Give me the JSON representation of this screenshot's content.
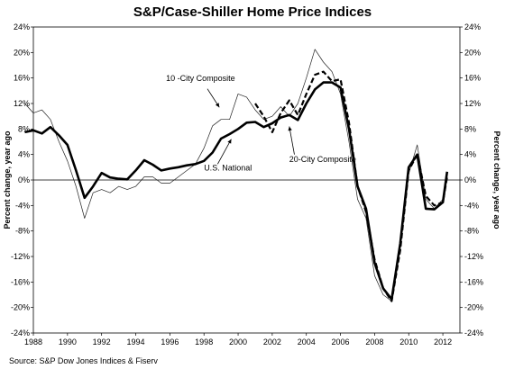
{
  "chart_data": {
    "type": "line",
    "title": "S&P/Case-Shiller Home Price Indices",
    "ylabel_left": "Percent change, year ago",
    "ylabel_right": "Percent change, year ago",
    "source": "Source: S&P Dow Jones Indices & Fiserv",
    "xlim": [
      1988,
      2013
    ],
    "ylim": [
      -24,
      24
    ],
    "x_ticks": [
      "1988",
      "1990",
      "1992",
      "1994",
      "1996",
      "1998",
      "2000",
      "2002",
      "2004",
      "2006",
      "2008",
      "2010",
      "2012"
    ],
    "y_ticks": [
      "24%",
      "20%",
      "16%",
      "12%",
      "8%",
      "4%",
      "0%",
      "-4%",
      "-8%",
      "-12%",
      "-16%",
      "-20%",
      "-24%"
    ],
    "annotations": [
      {
        "text": "10 -City Composite",
        "series": "10-City Composite"
      },
      {
        "text": "U.S. National",
        "series": "U.S. National"
      },
      {
        "text": "20-City Composite",
        "series": "20-City Composite"
      }
    ],
    "series": [
      {
        "name": "U.S. National",
        "style": "solid-thick",
        "x": [
          1987.5,
          1988,
          1988.5,
          1989,
          1989.5,
          1990,
          1990.5,
          1991,
          1991.5,
          1992,
          1992.5,
          1993,
          1993.5,
          1994,
          1994.5,
          1995,
          1995.5,
          1996,
          1996.5,
          1997,
          1997.5,
          1998,
          1998.5,
          1999,
          1999.5,
          2000,
          2000.5,
          2001,
          2001.5,
          2002,
          2002.5,
          2003,
          2003.5,
          2004,
          2004.5,
          2005,
          2005.5,
          2006,
          2006.5,
          2007,
          2007.5,
          2008,
          2008.5,
          2009,
          2009.5,
          2010,
          2010.5,
          2011,
          2011.5,
          2012,
          2012.25
        ],
        "y": [
          7.5,
          7.8,
          7.3,
          8.3,
          7.0,
          5.5,
          1.5,
          -2.8,
          -1.0,
          1.1,
          0.4,
          0.2,
          0.1,
          1.5,
          3.1,
          2.4,
          1.5,
          1.8,
          2.0,
          2.3,
          2.5,
          3.0,
          4.3,
          6.5,
          7.2,
          8.0,
          9.0,
          9.1,
          8.3,
          8.9,
          9.8,
          10.2,
          9.4,
          12.0,
          14.2,
          15.3,
          15.3,
          14.5,
          8.0,
          -1.0,
          -4.5,
          -13.0,
          -17.0,
          -18.7,
          -10.0,
          2.0,
          4.0,
          -4.5,
          -4.6,
          -3.5,
          1.3
        ]
      },
      {
        "name": "10-City Composite",
        "style": "thin",
        "x": [
          1987.5,
          1988,
          1988.5,
          1989,
          1989.5,
          1990,
          1990.5,
          1991,
          1991.5,
          1992,
          1992.5,
          1993,
          1993.5,
          1994,
          1994.5,
          1995,
          1995.5,
          1996,
          1996.5,
          1997,
          1997.5,
          1998,
          1998.5,
          1999,
          1999.5,
          2000,
          2000.5,
          2001,
          2001.5,
          2002,
          2002.5,
          2003,
          2003.5,
          2004,
          2004.5,
          2005,
          2005.5,
          2006,
          2006.5,
          2007,
          2007.5,
          2008,
          2008.5,
          2009,
          2009.5,
          2010,
          2010.5,
          2011,
          2011.5,
          2012,
          2012.25
        ],
        "y": [
          12.0,
          10.5,
          11.0,
          9.5,
          6.0,
          3.0,
          -1.0,
          -6.0,
          -2.0,
          -1.5,
          -2.0,
          -1.0,
          -1.5,
          -1.0,
          0.5,
          0.5,
          -0.5,
          -0.5,
          0.5,
          1.5,
          2.5,
          5.0,
          8.5,
          9.5,
          9.5,
          13.5,
          13.0,
          11.0,
          9.5,
          10.0,
          11.5,
          10.0,
          12.0,
          16.0,
          20.5,
          18.5,
          17.0,
          13.5,
          6.0,
          -3.0,
          -6.0,
          -15.0,
          -18.0,
          -19.0,
          -10.0,
          1.0,
          5.5,
          -3.0,
          -4.5,
          -3.0,
          1.0
        ]
      },
      {
        "name": "20-City Composite",
        "style": "dashed",
        "x": [
          2001,
          2001.5,
          2002,
          2002.5,
          2003,
          2003.5,
          2004,
          2004.5,
          2005,
          2005.5,
          2006,
          2006.5,
          2007,
          2007.5,
          2008,
          2008.5,
          2009,
          2009.5,
          2010,
          2010.5,
          2011,
          2011.5,
          2012,
          2012.25
        ],
        "y": [
          12.0,
          10.0,
          7.5,
          10.5,
          12.5,
          10.2,
          13.5,
          16.5,
          17.0,
          15.5,
          15.8,
          9.0,
          -1.0,
          -5.0,
          -12.5,
          -17.0,
          -19.0,
          -11.0,
          1.5,
          4.0,
          -2.5,
          -4.0,
          -3.5,
          0.5
        ]
      }
    ]
  }
}
